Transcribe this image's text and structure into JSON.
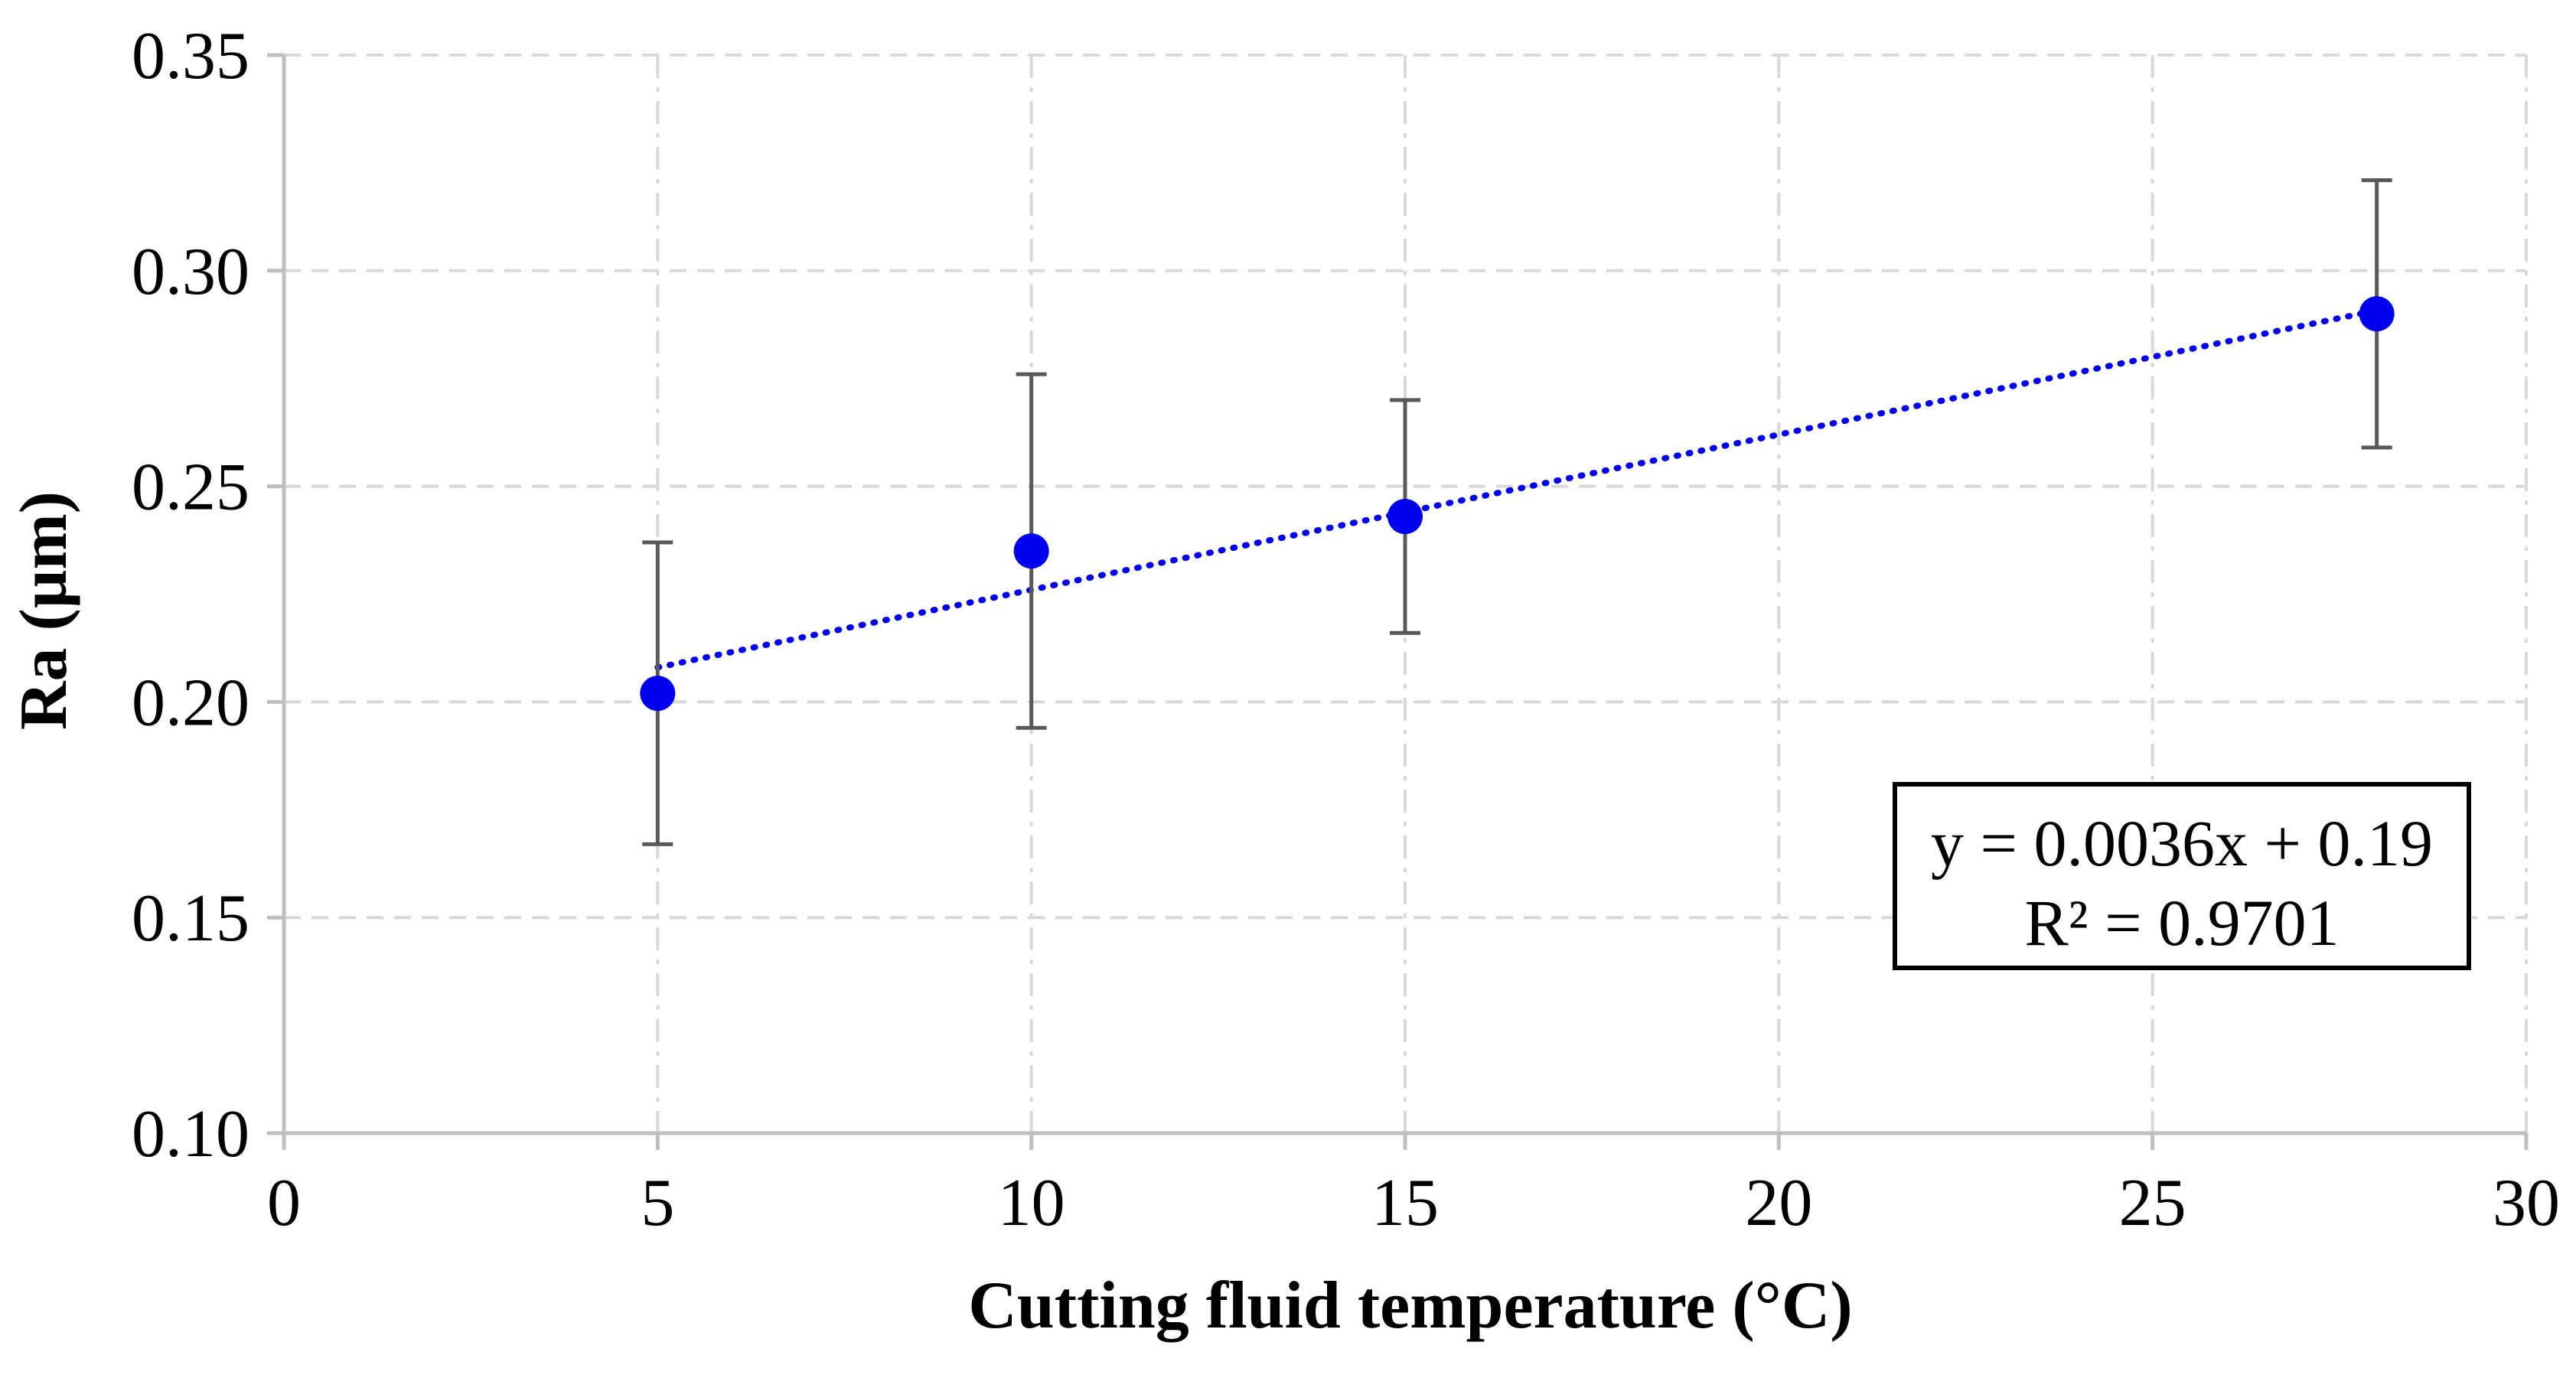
{
  "chart_data": {
    "type": "scatter",
    "title": "",
    "xlabel": "Cutting fluid temperature (°C)",
    "ylabel": "Ra (µm)",
    "xlim": [
      0,
      30
    ],
    "ylim": [
      0.1,
      0.35
    ],
    "xticks": [
      0,
      5,
      10,
      15,
      20,
      25,
      30
    ],
    "xtick_labels": [
      "0",
      "5",
      "10",
      "15",
      "20",
      "25",
      "30"
    ],
    "yticks": [
      0.1,
      0.15,
      0.2,
      0.25,
      0.3,
      0.35
    ],
    "ytick_labels": [
      "0.10",
      "0.15",
      "0.20",
      "0.25",
      "0.30",
      "0.35"
    ],
    "grid": true,
    "legend": "none",
    "series": [
      {
        "name": "Ra",
        "color": "#0000EE",
        "x": [
          5,
          10,
          15,
          28
        ],
        "y": [
          0.202,
          0.235,
          0.243,
          0.29
        ],
        "error_upper": [
          0.237,
          0.276,
          0.27,
          0.321
        ],
        "error_lower": [
          0.167,
          0.194,
          0.216,
          0.259
        ]
      }
    ],
    "trendline": {
      "type": "linear",
      "color": "#0000EE",
      "x_range": [
        5,
        28
      ],
      "equation": "y = 0.0036x + 0.19",
      "r_squared": "R² = 0.9701",
      "slope": 0.0036,
      "intercept": 0.19,
      "placement": "bottom-right"
    },
    "colors": {
      "axis": "#bfbfbf",
      "grid": "#d9d9d9",
      "errorbar": "#595959",
      "marker": "#0000EE"
    }
  }
}
